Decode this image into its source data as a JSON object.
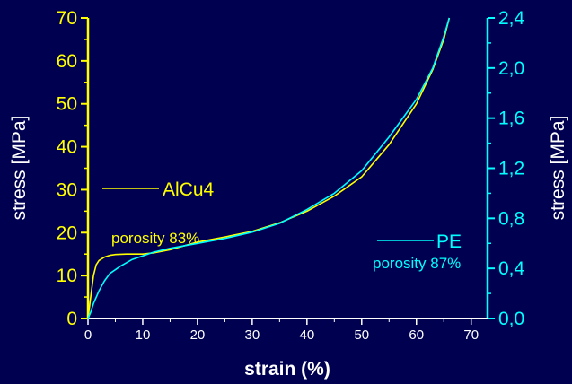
{
  "chart_data": {
    "type": "line",
    "xlabel": "strain (%)",
    "ylabel_left": "stress [MPa]",
    "ylabel_right": "stress [MPa]",
    "xlim": [
      0,
      73
    ],
    "ylim_left": [
      0,
      70
    ],
    "ylim_right": [
      0,
      2.4
    ],
    "x_ticks": [
      "0",
      "10",
      "20",
      "30",
      "40",
      "50",
      "60",
      "70"
    ],
    "y_left_ticks": [
      "0",
      "10",
      "20",
      "30",
      "40",
      "50",
      "60",
      "70"
    ],
    "y_right_ticks": [
      "0,0",
      "0,4",
      "0,8",
      "1,2",
      "1,6",
      "2,0",
      "2,4"
    ],
    "grid": false,
    "series": [
      {
        "name": "AlCu4",
        "annotation": "porosity 83%",
        "axis": "left",
        "color": "#ffff00",
        "points": [
          [
            0,
            0
          ],
          [
            0.5,
            5
          ],
          [
            1,
            10
          ],
          [
            1.5,
            12.5
          ],
          [
            2,
            13.5
          ],
          [
            3,
            14.3
          ],
          [
            4,
            14.7
          ],
          [
            5,
            14.9
          ],
          [
            7,
            15
          ],
          [
            10,
            15
          ],
          [
            12,
            15.3
          ],
          [
            15,
            16
          ],
          [
            20,
            17.8
          ],
          [
            25,
            19
          ],
          [
            30,
            20.3
          ],
          [
            35,
            22.3
          ],
          [
            40,
            25
          ],
          [
            45,
            28.5
          ],
          [
            50,
            33
          ],
          [
            55,
            40.5
          ],
          [
            60,
            50
          ],
          [
            63,
            58
          ],
          [
            65,
            65
          ],
          [
            66,
            70
          ]
        ]
      },
      {
        "name": "PE",
        "annotation": "porosity 87%",
        "axis": "right",
        "color": "#00ffff",
        "points": [
          [
            0,
            0
          ],
          [
            0.5,
            0.05
          ],
          [
            1,
            0.12
          ],
          [
            2,
            0.22
          ],
          [
            3,
            0.3
          ],
          [
            4,
            0.36
          ],
          [
            6,
            0.42
          ],
          [
            8,
            0.47
          ],
          [
            10,
            0.5
          ],
          [
            12,
            0.53
          ],
          [
            15,
            0.56
          ],
          [
            20,
            0.6
          ],
          [
            25,
            0.64
          ],
          [
            30,
            0.69
          ],
          [
            35,
            0.76
          ],
          [
            40,
            0.87
          ],
          [
            45,
            1.0
          ],
          [
            50,
            1.18
          ],
          [
            55,
            1.45
          ],
          [
            60,
            1.75
          ],
          [
            63,
            2.0
          ],
          [
            65,
            2.25
          ],
          [
            66,
            2.4
          ]
        ]
      }
    ]
  }
}
